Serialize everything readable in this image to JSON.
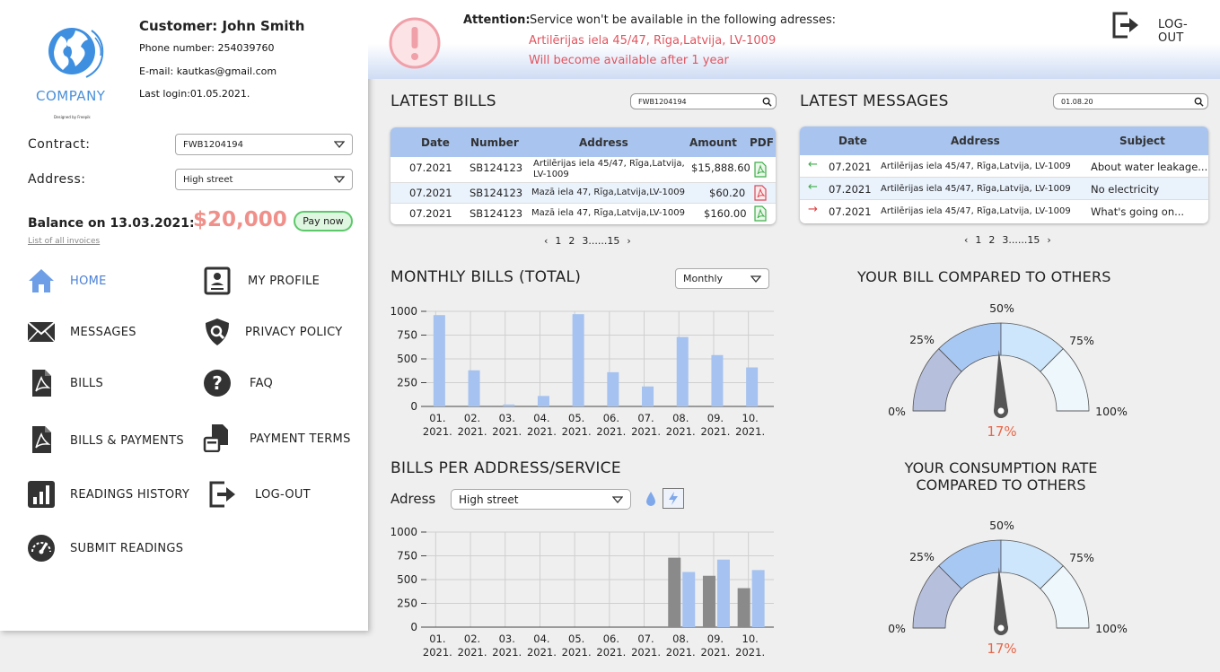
{
  "company": {
    "name": "COMPANY",
    "tagline": "Designed by Freepik"
  },
  "customer": {
    "name_label": "Customer: John Smith",
    "phone": "Phone number: 254039760",
    "email": "E-mail: kautkas@gmail.com",
    "last_login": "Last login:01.05.2021."
  },
  "contract": {
    "label": "Contract:",
    "value": "FWB1204194"
  },
  "address": {
    "label": "Address:",
    "value": "High street"
  },
  "balance": {
    "label": "Balance on 13.03.2021:",
    "amount": "$20,000",
    "pay_label": "Pay now",
    "invoices_link": "List of all invoices"
  },
  "nav": {
    "home": "HOME",
    "my_profile": "MY PROFILE",
    "messages": "MESSAGES",
    "privacy": "PRIVACY POLICY",
    "bills": "BILLS",
    "faq": "FAQ",
    "bills_payments": "BILLS & PAYMENTS",
    "payment_terms": "PAYMENT TERMS",
    "readings_history": "READINGS HISTORY",
    "logout": "LOG-OUT",
    "submit_readings": "SUBMIT READINGS"
  },
  "alert": {
    "title": "Attention:",
    "message": "Service won't be available in the following adresses:",
    "address": "Artilērijas iela 45/47, Rīga,Latvija, LV-1009",
    "note": "Will become available after 1 year"
  },
  "header_logout": "LOG-OUT",
  "latest_bills": {
    "title": "LATEST BILLS",
    "search_value": "FWB1204194",
    "columns": [
      "Date",
      "Number",
      "Address",
      "Amount",
      "PDF"
    ],
    "rows": [
      {
        "date": "07.2021",
        "number": "SB124123",
        "address": "Artilērijas iela 45/47, Rīga,Latvija, LV-1009",
        "amount": "$15,888.60"
      },
      {
        "date": "07.2021",
        "number": "SB124123",
        "address": "Mazā iela 47, Rīga,Latvija,LV-1009",
        "amount": "$60.20"
      },
      {
        "date": "07.2021",
        "number": "SB124123",
        "address": "Mazā iela 47, Rīga,Latvija,LV-1009",
        "amount": "$160.00"
      }
    ],
    "pager": [
      "‹",
      "1",
      "2",
      "3......15",
      "›"
    ]
  },
  "latest_messages": {
    "title": "LATEST MESSAGES",
    "search_value": "01.08.20",
    "columns": [
      "Date",
      "Address",
      "Subject"
    ],
    "rows": [
      {
        "direction": "in",
        "date": "07.2021",
        "address": "Artilērijas iela 45/47, Rīga,Latvija, LV-1009",
        "subject": "About water leakage..."
      },
      {
        "direction": "in",
        "date": "07.2021",
        "address": "Artilērijas iela 45/47, Rīga,Latvija, LV-1009",
        "subject": "No electricity"
      },
      {
        "direction": "out",
        "date": "07.2021",
        "address": "Artilērijas iela 45/47, Rīga,Latvija, LV-1009",
        "subject": "What's going on..."
      }
    ],
    "pager": [
      "‹",
      "1",
      "2",
      "3......15",
      "›"
    ]
  },
  "monthly": {
    "title": "MONTHLY BILLS (TOTAL)",
    "period": "Monthly"
  },
  "per_address": {
    "title": "BILLS PER ADDRESS/SERVICE",
    "label": "Adress",
    "value": "High street"
  },
  "compare_bill": {
    "title": "YOUR BILL COMPARED TO OTHERS",
    "ticks": [
      "0%",
      "25%",
      "50%",
      "75%",
      "100%"
    ],
    "value_label": "17%"
  },
  "compare_consumption": {
    "title_line1": "YOUR CONSUMPTION RATE",
    "title_line2": "COMPARED TO OTHERS",
    "ticks": [
      "0%",
      "25%",
      "50%",
      "75%",
      "100%"
    ],
    "value_label": "17%"
  },
  "chart_data": [
    {
      "type": "bar",
      "categories": [
        "01.\n2021.",
        "02.\n2021.",
        "03.\n2021.",
        "04.\n2021.",
        "05.\n2021.",
        "06.\n2021.",
        "07.\n2021.",
        "08.\n2021.",
        "09.\n2021.",
        "10.\n2021."
      ],
      "values": [
        960,
        380,
        20,
        110,
        970,
        360,
        210,
        730,
        540,
        410
      ],
      "ylim": [
        0,
        1000
      ],
      "yticks": [
        0,
        250,
        500,
        750,
        1000
      ],
      "color": "#a5c2f1",
      "grid": true
    },
    {
      "type": "bar",
      "categories": [
        "01.\n2021.",
        "02.\n2021.",
        "03.\n2021.",
        "04.\n2021.",
        "05.\n2021.",
        "06.\n2021.",
        "07.\n2021.",
        "08.\n2021.",
        "09.\n2021.",
        "10.\n2021."
      ],
      "series": [
        {
          "values": [
            0,
            0,
            0,
            0,
            0,
            0,
            0,
            730,
            540,
            410
          ],
          "color": "#8a8a8a"
        },
        {
          "values": [
            0,
            0,
            0,
            0,
            0,
            0,
            0,
            580,
            710,
            600
          ],
          "color": "#a5c2f1"
        }
      ],
      "ylim": [
        0,
        1000
      ],
      "yticks": [
        0,
        250,
        500,
        750,
        1000
      ],
      "grid": true
    },
    {
      "type": "gauge",
      "value_percent": 17
    },
    {
      "type": "gauge",
      "value_percent": 17
    }
  ]
}
